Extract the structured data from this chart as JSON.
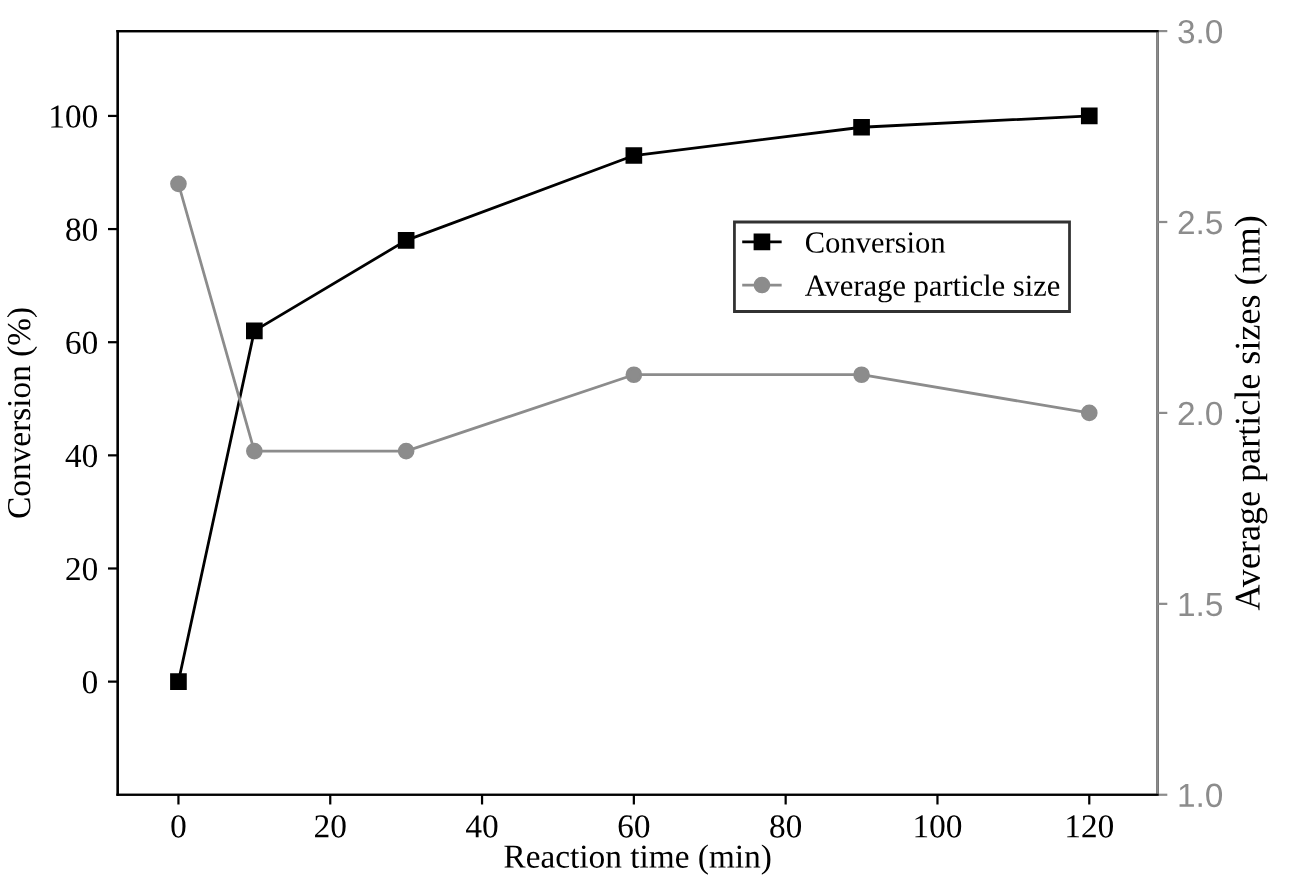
{
  "chart_data": {
    "type": "line",
    "xlabel": "Reaction time (min)",
    "ylabel": "Conversion (%)",
    "y2label": "Average particle sizes (nm)",
    "x": [
      0,
      10,
      30,
      60,
      90,
      120
    ],
    "series": [
      {
        "name": "Conversion",
        "color": "#000000",
        "marker": "square",
        "values": [
          0,
          62,
          78,
          93,
          98,
          100
        ]
      },
      {
        "name": "Average particle size",
        "color": "#8c8c8c",
        "marker": "circle",
        "axis": "y2",
        "values": [
          2.6,
          1.9,
          1.9,
          2.1,
          2.1,
          2.0
        ]
      }
    ],
    "xlim": [
      -8,
      129
    ],
    "xticks": [
      0,
      20,
      40,
      60,
      80,
      100,
      120
    ],
    "ylim": [
      -20,
      115
    ],
    "yticks": [
      0,
      20,
      40,
      60,
      80,
      100
    ],
    "y2lim": [
      1.0,
      3.0
    ],
    "y2ticks": [
      {
        "value": 1.0,
        "label": "1.0"
      },
      {
        "value": 1.5,
        "label": "1.5"
      },
      {
        "value": 2.0,
        "label": "2.0"
      },
      {
        "value": 2.5,
        "label": "2.5"
      },
      {
        "value": 3.0,
        "label": "3.0"
      }
    ],
    "legend": "top right",
    "grid": false,
    "line_style": "solid"
  }
}
